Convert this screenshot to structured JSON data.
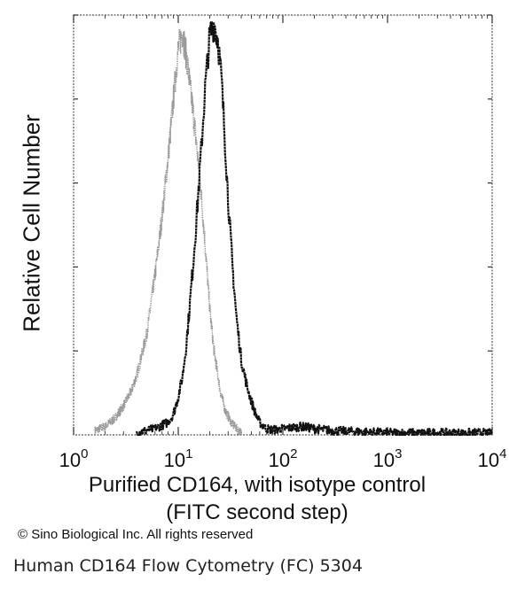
{
  "chart_data": {
    "type": "area",
    "xscale": "log",
    "xlim": [
      1,
      10000
    ],
    "ylim": [
      0,
      100
    ],
    "xticks": [
      {
        "value": 1,
        "base": "10",
        "exp": "0"
      },
      {
        "value": 10,
        "base": "10",
        "exp": "1"
      },
      {
        "value": 100,
        "base": "10",
        "exp": "2"
      },
      {
        "value": 1000,
        "base": "10",
        "exp": "3"
      },
      {
        "value": 10000,
        "base": "10",
        "exp": "4"
      }
    ],
    "ylabel": "Relative Cell Number",
    "xlabel_line1": "Purified CD164, with isotype control",
    "xlabel_line2": "(FITC second step)",
    "grid": false,
    "series": [
      {
        "color": "#9a9a9a",
        "x": [
          1.6,
          2.0,
          2.5,
          3.0,
          3.5,
          4.0,
          5.0,
          6.0,
          7.0,
          8.0,
          9.0,
          10.0,
          11.0,
          12.0,
          14.0,
          16.0,
          18.0,
          20.0,
          22.0,
          25.0,
          28.0,
          32.0,
          36.0,
          40.0
        ],
        "y": [
          1,
          2,
          4,
          7,
          10,
          14,
          24,
          38,
          52,
          66,
          80,
          92,
          96,
          90,
          76,
          62,
          46,
          30,
          20,
          11,
          6,
          3,
          1.5,
          0.5
        ]
      },
      {
        "color": "#111111",
        "x": [
          4.0,
          6.0,
          8.0,
          9.0,
          10.0,
          11.0,
          12.0,
          13.0,
          14.0,
          15.0,
          16.0,
          17.0,
          18.0,
          20.0,
          22.0,
          24.0,
          26.0,
          28.0,
          30.0,
          33.0,
          36.0,
          40.0,
          45.0,
          50.0,
          55.0,
          60.0,
          70.0,
          80.0,
          100.0,
          150.0,
          200.0,
          300.0,
          500.0,
          1000.0,
          3000.0,
          10000.0
        ],
        "y": [
          0.5,
          1.5,
          3,
          5,
          9,
          14,
          22,
          32,
          42,
          52,
          62,
          72,
          82,
          95,
          98,
          94,
          84,
          70,
          56,
          40,
          28,
          18,
          12,
          8,
          5,
          3,
          1.5,
          1.2,
          1.5,
          2,
          1.5,
          1,
          0.8,
          0.5,
          0.5,
          0.5
        ]
      }
    ]
  },
  "copyright": "© Sino Biological Inc. All rights reserved",
  "caption": "Human CD164 Flow Cytometry (FC) 5304"
}
